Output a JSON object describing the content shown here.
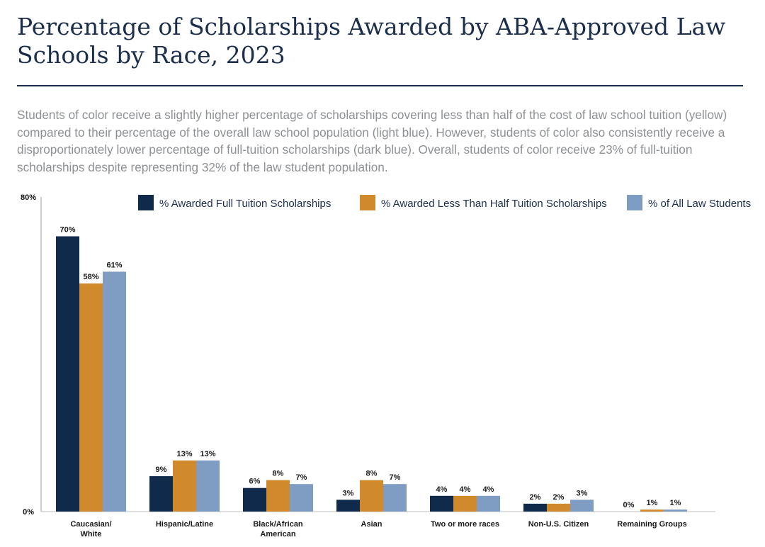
{
  "title": "Percentage of Scholarships Awarded by ABA-Approved Law Schools by Race, 2023",
  "subtitle": "Students of color receive a slightly higher percentage of scholarships covering less than half of the cost of law school tuition (yellow) compared to their percentage of the overall law school population (light blue). However, students of color also consistently receive a disproportionately lower percentage of full-tuition scholarships (dark blue). Overall, students of color receive 23% of full-tuition scholarships despite representing 32% of the law student population.",
  "colors": {
    "title": "#1b2f4d",
    "subtitle": "#8e9194",
    "full": "#0f2a4a",
    "less_half": "#d08a2b",
    "all_students": "#7f9cc3"
  },
  "chart_data": {
    "type": "bar",
    "ylim": [
      0,
      80
    ],
    "ytick_labels": [
      "0%",
      "80%"
    ],
    "legend_position": "top-right",
    "categories": [
      [
        "Caucasian/",
        "White"
      ],
      [
        "Hispanic/Latine"
      ],
      [
        "Black/African",
        "American"
      ],
      [
        "Asian"
      ],
      [
        "Two or more races"
      ],
      [
        "Non-U.S. Citizen"
      ],
      [
        "Remaining Groups"
      ]
    ],
    "series": [
      {
        "name": "% Awarded Full Tuition Scholarships",
        "color": "#0f2a4a",
        "values": [
          70,
          9,
          6,
          3,
          4,
          2,
          0
        ],
        "labels": [
          "70%",
          "9%",
          "6%",
          "3%",
          "4%",
          "2%",
          "0%"
        ]
      },
      {
        "name": "% Awarded Less Than Half Tuition Scholarships",
        "color": "#d08a2b",
        "values": [
          58,
          13,
          8,
          8,
          4,
          2,
          0.5
        ],
        "labels": [
          "58%",
          "13%",
          "8%",
          "8%",
          "4%",
          "2%",
          "1%"
        ]
      },
      {
        "name": "% of All Law Students",
        "color": "#7f9cc3",
        "values": [
          61,
          13,
          7,
          7,
          4,
          3,
          0.5
        ],
        "labels": [
          "61%",
          "13%",
          "7%",
          "7%",
          "4%",
          "3%",
          "1%"
        ]
      }
    ]
  }
}
